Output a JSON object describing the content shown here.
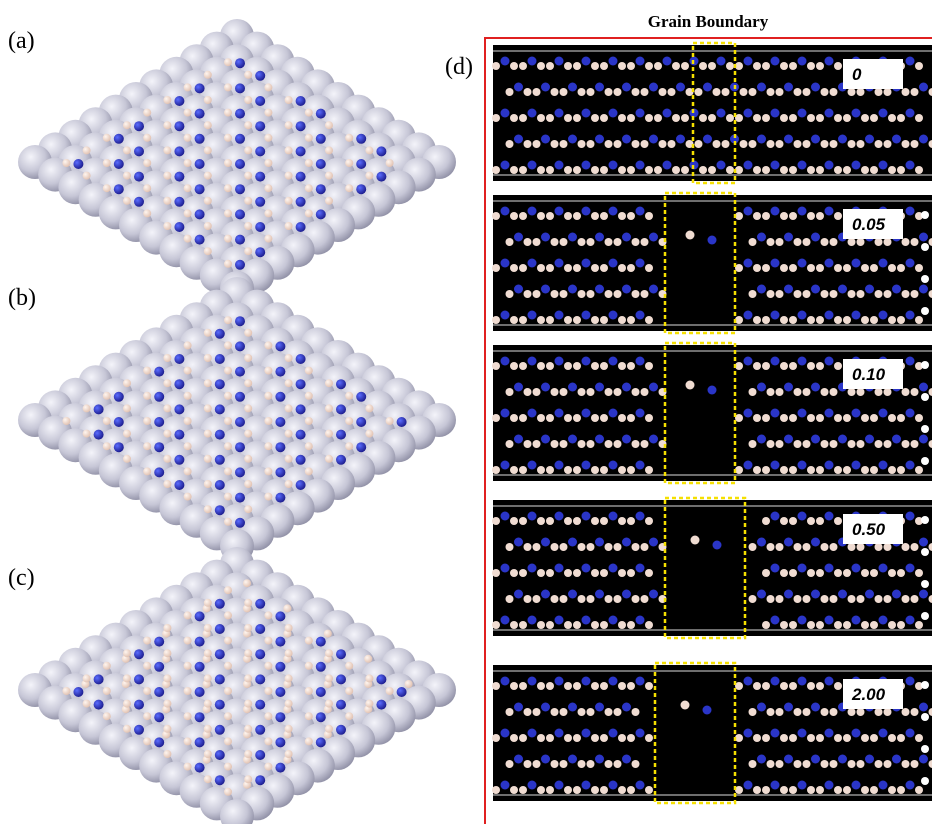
{
  "figure": {
    "title": "Grain Boundary",
    "panels": [
      "(a)",
      "(b)",
      "(c)",
      "(d)"
    ],
    "strips": [
      "0",
      "0.05",
      "0.10",
      "0.50",
      "2.00"
    ]
  }
}
